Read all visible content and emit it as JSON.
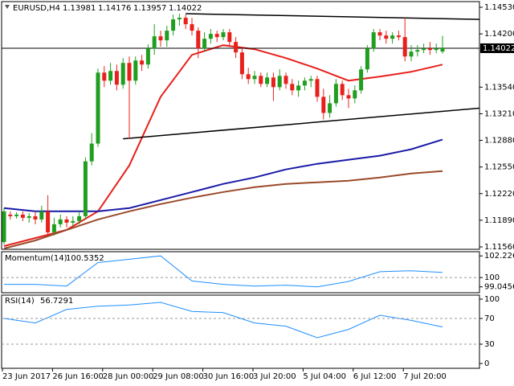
{
  "chart_data": [
    {
      "type": "candlestick",
      "title": "EURUSD,H4",
      "categories": [
        "23 Jun 2017",
        null,
        null,
        null,
        null,
        null,
        null,
        null,
        "26 Jun 16:00",
        null,
        null,
        null,
        null,
        null,
        null,
        null,
        "28 Jun 00:00",
        null,
        null,
        null,
        null,
        null,
        null,
        null,
        "29 Jun 08:00",
        null,
        null,
        null,
        null,
        null,
        null,
        null,
        "30 Jun 16:00",
        null,
        null,
        null,
        null,
        null,
        null,
        null,
        "3 Jul 20:00",
        null,
        null,
        null,
        null,
        null,
        null,
        null,
        "5 Jul 04:00",
        null,
        null,
        null,
        null,
        null,
        null,
        null,
        "6 Jul 12:00",
        null,
        null,
        null,
        null,
        null,
        null,
        null,
        "7 Jul 20:00",
        null,
        null,
        null,
        null,
        null,
        null
      ],
      "open": [
        1.1162,
        1.1196,
        1.1194,
        1.1196,
        1.1192,
        1.1194,
        1.119,
        1.12,
        1.1174,
        1.1184,
        1.119,
        1.1186,
        1.1188,
        1.1194,
        1.1262,
        1.1284,
        1.1372,
        1.1362,
        1.1374,
        1.1357,
        1.1384,
        1.1362,
        1.1387,
        1.1382,
        1.1402,
        1.1417,
        1.1412,
        1.1424,
        1.1438,
        1.144,
        1.1432,
        1.1424,
        1.1402,
        1.1414,
        1.142,
        1.1416,
        1.1422,
        1.141,
        1.1397,
        1.137,
        1.1364,
        1.1368,
        1.1358,
        1.1366,
        1.1354,
        1.1368,
        1.1358,
        1.135,
        1.1356,
        1.1362,
        1.1364,
        1.1342,
        1.1322,
        1.1334,
        1.1358,
        1.1344,
        1.134,
        1.135,
        1.1376,
        1.1402,
        1.1422,
        1.1418,
        1.1414,
        1.1418,
        1.1416,
        1.1392,
        1.1398,
        1.14,
        1.1402,
        1.14,
        1.13981
      ],
      "high": [
        1.1204,
        1.12,
        1.1199,
        1.12,
        1.1198,
        1.1199,
        1.1207,
        1.122,
        1.1192,
        1.1196,
        1.1194,
        1.1194,
        1.12,
        1.1267,
        1.1297,
        1.1377,
        1.138,
        1.1384,
        1.1382,
        1.139,
        1.1392,
        1.1392,
        1.1394,
        1.1407,
        1.1432,
        1.1424,
        1.143,
        1.1444,
        1.1445,
        1.1444,
        1.144,
        1.1428,
        1.1422,
        1.1426,
        1.1424,
        1.1426,
        1.1426,
        1.1416,
        1.1402,
        1.1378,
        1.1374,
        1.1372,
        1.1372,
        1.1372,
        1.1376,
        1.1372,
        1.1364,
        1.1362,
        1.1366,
        1.1368,
        1.1368,
        1.1352,
        1.1344,
        1.1364,
        1.1362,
        1.1352,
        1.1356,
        1.138,
        1.1406,
        1.1426,
        1.1426,
        1.1424,
        1.1422,
        1.1424,
        1.144,
        1.1406,
        1.1406,
        1.1408,
        1.141,
        1.1408,
        1.14176
      ],
      "low": [
        1.1159,
        1.119,
        1.1191,
        1.1188,
        1.1186,
        1.1184,
        1.1186,
        1.117,
        1.117,
        1.118,
        1.118,
        1.1182,
        1.1184,
        1.119,
        1.1257,
        1.128,
        1.1354,
        1.1357,
        1.135,
        1.1352,
        1.129,
        1.1357,
        1.1374,
        1.1377,
        1.1394,
        1.1404,
        1.1404,
        1.1418,
        1.143,
        1.1426,
        1.1418,
        1.139,
        1.1398,
        1.1408,
        1.141,
        1.1412,
        1.1404,
        1.139,
        1.1364,
        1.1358,
        1.1358,
        1.1354,
        1.1354,
        1.1337,
        1.135,
        1.1352,
        1.1344,
        1.1342,
        1.135,
        1.1354,
        1.1336,
        1.1314,
        1.1316,
        1.133,
        1.1338,
        1.1328,
        1.1334,
        1.1346,
        1.1372,
        1.1398,
        1.1412,
        1.1408,
        1.1408,
        1.1412,
        1.1386,
        1.1386,
        1.1392,
        1.1396,
        1.1394,
        1.1396,
        1.13957
      ],
      "close": [
        1.12,
        1.1194,
        1.1196,
        1.1192,
        1.1194,
        1.119,
        1.12,
        1.1174,
        1.1184,
        1.119,
        1.1186,
        1.1188,
        1.1194,
        1.1262,
        1.1284,
        1.1372,
        1.1362,
        1.1374,
        1.1357,
        1.1384,
        1.1362,
        1.1387,
        1.1382,
        1.1402,
        1.1417,
        1.1412,
        1.1424,
        1.1438,
        1.144,
        1.1432,
        1.1424,
        1.1402,
        1.1414,
        1.142,
        1.1416,
        1.1422,
        1.141,
        1.1397,
        1.137,
        1.1364,
        1.1368,
        1.1358,
        1.1366,
        1.1354,
        1.1368,
        1.1358,
        1.135,
        1.1356,
        1.1362,
        1.1364,
        1.1342,
        1.1322,
        1.1334,
        1.1358,
        1.1344,
        1.134,
        1.135,
        1.1376,
        1.1402,
        1.1422,
        1.1418,
        1.1414,
        1.1418,
        1.1416,
        1.1392,
        1.1398,
        1.14,
        1.1402,
        1.14,
        1.1402,
        1.14022
      ],
      "up_color": "#1f9e1f",
      "down_color": "#e8201c",
      "ylim": [
        1.1153,
        1.146
      ],
      "yticks": [
        {
          "value": 1.1453,
          "label": "1.14530"
        },
        {
          "value": 1.142,
          "label": "1.14200"
        },
        {
          "value": 1.1354,
          "label": "1.13540"
        },
        {
          "value": 1.1321,
          "label": "1.13210"
        },
        {
          "value": 1.1288,
          "label": "1.12880"
        },
        {
          "value": 1.1255,
          "label": "1.12550"
        },
        {
          "value": 1.1222,
          "label": "1.12220"
        },
        {
          "value": 1.1189,
          "label": "1.11890"
        },
        {
          "value": 1.1156,
          "label": "1.11560"
        }
      ],
      "overlays": [
        {
          "color": "#e8201c",
          "x": [
            0,
            5,
            10,
            15,
            20,
            25,
            30,
            35,
            40,
            45,
            50,
            55,
            60,
            65,
            70
          ],
          "values": [
            1.1157,
            1.1167,
            1.1177,
            1.12,
            1.1257,
            1.1342,
            1.1394,
            1.1406,
            1.1401,
            1.139,
            1.1377,
            1.1362,
            1.1367,
            1.1373,
            1.1382
          ]
        },
        {
          "color": "#1a1aa8",
          "x": [
            0,
            5,
            10,
            15,
            20,
            25,
            30,
            35,
            40,
            45,
            50,
            55,
            60,
            65,
            70
          ],
          "values": [
            1.1204,
            1.12,
            1.12,
            1.12,
            1.1204,
            1.1214,
            1.1224,
            1.1234,
            1.1242,
            1.1252,
            1.1259,
            1.1264,
            1.1269,
            1.1277,
            1.1289
          ]
        },
        {
          "color": "#9a4a2a",
          "x": [
            0,
            5,
            10,
            15,
            20,
            25,
            30,
            35,
            40,
            45,
            50,
            55,
            60,
            65,
            70
          ],
          "values": [
            1.1154,
            1.1164,
            1.1177,
            1.119,
            1.12,
            1.1209,
            1.1217,
            1.1224,
            1.123,
            1.1234,
            1.1236,
            1.1238,
            1.1242,
            1.1247,
            1.125
          ]
        },
        {
          "color": "#000000",
          "x": [
            29,
            76
          ],
          "values": [
            1.1445,
            1.1438
          ]
        },
        {
          "color": "#000000",
          "x": [
            19,
            76
          ],
          "values": [
            1.129,
            1.1328
          ]
        }
      ]
    },
    {
      "type": "line",
      "title": "Momentum(14)",
      "color": "#1e8fff",
      "x": [
        0,
        5,
        10,
        15,
        20,
        25,
        30,
        35,
        40,
        45,
        50,
        55,
        60,
        65,
        70
      ],
      "values": [
        99.3,
        99.3,
        99.13,
        101.54,
        101.88,
        102.2267,
        99.65,
        99.3,
        99.13,
        99.22,
        99.0456,
        99.6,
        100.6,
        100.7,
        100.5352
      ],
      "ylim": [
        98.44,
        102.66
      ],
      "yticks": [
        102.2267,
        100,
        99.0456
      ],
      "levels": [
        100
      ]
    },
    {
      "type": "line",
      "title": "RSI(14)",
      "color": "#1e8fff",
      "x": [
        0,
        5,
        10,
        15,
        20,
        25,
        30,
        35,
        40,
        45,
        50,
        55,
        60,
        65,
        70
      ],
      "values": [
        70,
        63,
        84,
        89,
        91,
        95,
        81,
        79,
        63,
        58,
        40,
        53,
        75,
        67,
        56.7291
      ],
      "ylim": [
        0,
        100
      ],
      "yticks": [
        100,
        70,
        30,
        0
      ],
      "levels": [
        70,
        30
      ]
    }
  ]
}
